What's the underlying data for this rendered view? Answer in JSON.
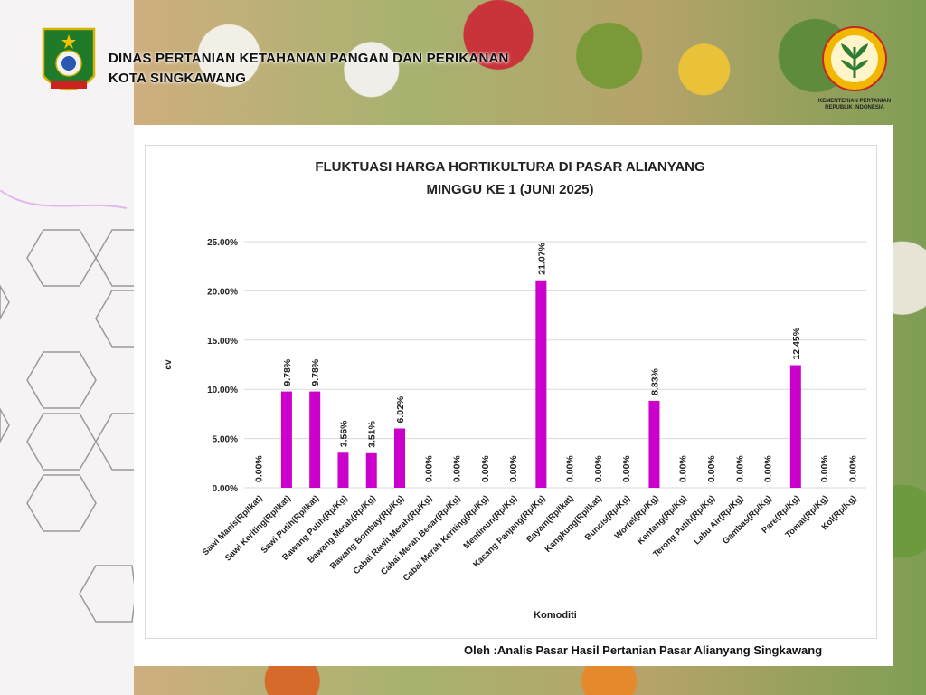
{
  "header": {
    "line1": "DINAS PERTANIAN KETAHANAN PANGAN DAN PERIKANAN",
    "line2": "KOTA SINGKAWANG"
  },
  "logo_right": {
    "line1": "KEMENTERIAN PERTANIAN",
    "line2": "REPUBLIK INDONESIA"
  },
  "footer": "Oleh :Analis Pasar Hasil Pertanian Pasar Alianyang Singkawang",
  "colors": {
    "bar": "#cc00cc",
    "grid": "#d9d9d9",
    "text": "#222222"
  },
  "chart_data": {
    "type": "bar",
    "title_line1": "FLUKTUASI HARGA HORTIKULTURA DI PASAR ALIANYANG",
    "title_line2": "MINGGU KE 1 (JUNI 2025)",
    "xlabel": "Komoditi",
    "ylabel": "cv",
    "ylim": [
      0,
      25
    ],
    "yticks": [
      "0.00%",
      "5.00%",
      "10.00%",
      "15.00%",
      "20.00%",
      "25.00%"
    ],
    "grid": true,
    "categories": [
      "Sawi Manis(Rp/Ikat)",
      "Sawi Keriting(Rp/Ikat)",
      "Sawi Putih(Rp/Ikat)",
      "Bawang Putih(Rp/Kg)",
      "Bawang Merah(Rp/Kg)",
      "Bawang Bombay(Rp/Kg)",
      "Cabai Rawit Merah(Rp/Kg)",
      "Cabai Merah Besar(Rp/Kg)",
      "Cabai Merah Keriting(Rp/Kg)",
      "Mentimun(Rp/Kg)",
      "Kacang Panjang(Rp/Kg)",
      "Bayam(Rp/Ikat)",
      "Kangkung(Rp/Ikat)",
      "Buncis(Rp/Kg)",
      "Wortel(Rp/Kg)",
      "Kentang(Rp/Kg)",
      "Terong Putih(Rp/Kg)",
      "Labu Air(Rp/Kg)",
      "Gambas(Rp/Kg)",
      "Pare(Rp/Kg)",
      "Tomat(Rp/Kg)",
      "Kol(Rp/Kg)"
    ],
    "values": [
      0,
      9.78,
      9.78,
      3.56,
      3.51,
      6.02,
      0,
      0,
      0,
      0,
      21.07,
      0,
      0,
      0,
      8.83,
      0,
      0,
      0,
      0,
      12.45,
      0,
      0
    ],
    "data_labels": [
      "0.00%",
      "9.78%",
      "9.78%",
      "3.56%",
      "3.51%",
      "6.02%",
      "0.00%",
      "0.00%",
      "0.00%",
      "0.00%",
      "21.07%",
      "0.00%",
      "0.00%",
      "0.00%",
      "8.83%",
      "0.00%",
      "0.00%",
      "0.00%",
      "0.00%",
      "12.45%",
      "0.00%",
      "0.00%"
    ]
  }
}
